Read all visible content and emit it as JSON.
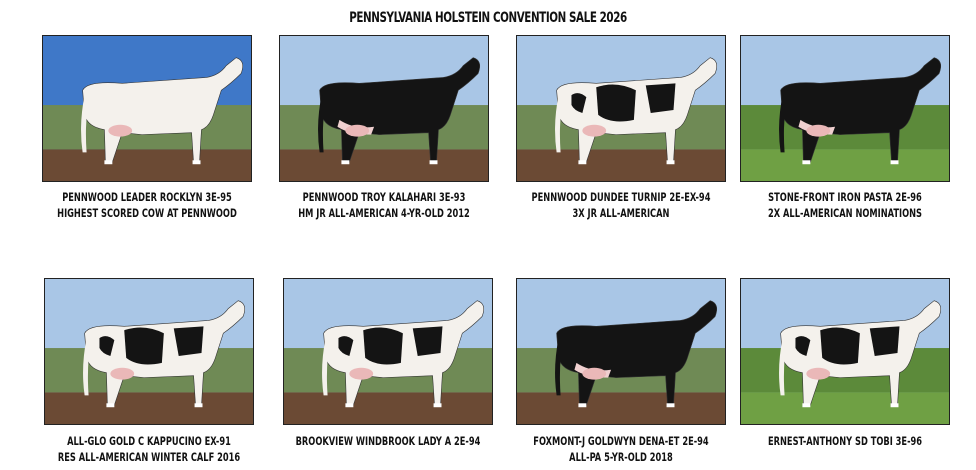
{
  "title": "PENNSYLVANIA HOLSTEIN CONVENTION SALE 2026",
  "lots": [
    {
      "name": "PENNWOOD LEADER ROCKLYN 3E-95",
      "note": "HIGHEST SCORED COW AT PENNWOOD"
    },
    {
      "name": "PENNWOOD TROY KALAHARI 3E-93",
      "note": "HM JR ALL-AMERICAN 4-YR-OLD 2012"
    },
    {
      "name": "PENNWOOD DUNDEE TURNIP 2E-EX-94",
      "note": "3X JR ALL-AMERICAN"
    },
    {
      "name": "STONE-FRONT IRON PASTA 2E-96",
      "note": "2X  ALL-AMERICAN NOMINATIONS"
    },
    {
      "name": "ALL-GLO GOLD C KAPPUCINO EX-91",
      "note": "RES ALL-AMERICAN WINTER CALF 2016"
    },
    {
      "name": "BROOKVIEW WINDBROOK LADY A 2E-94",
      "note": ""
    },
    {
      "name": "FOXMONT-J GOLDWYN DENA-ET 2E-94",
      "note": "ALL-PA 5-YR-OLD 2018"
    },
    {
      "name": "ERNEST-ANTHONY SD TOBI 3E-96",
      "note": ""
    }
  ]
}
